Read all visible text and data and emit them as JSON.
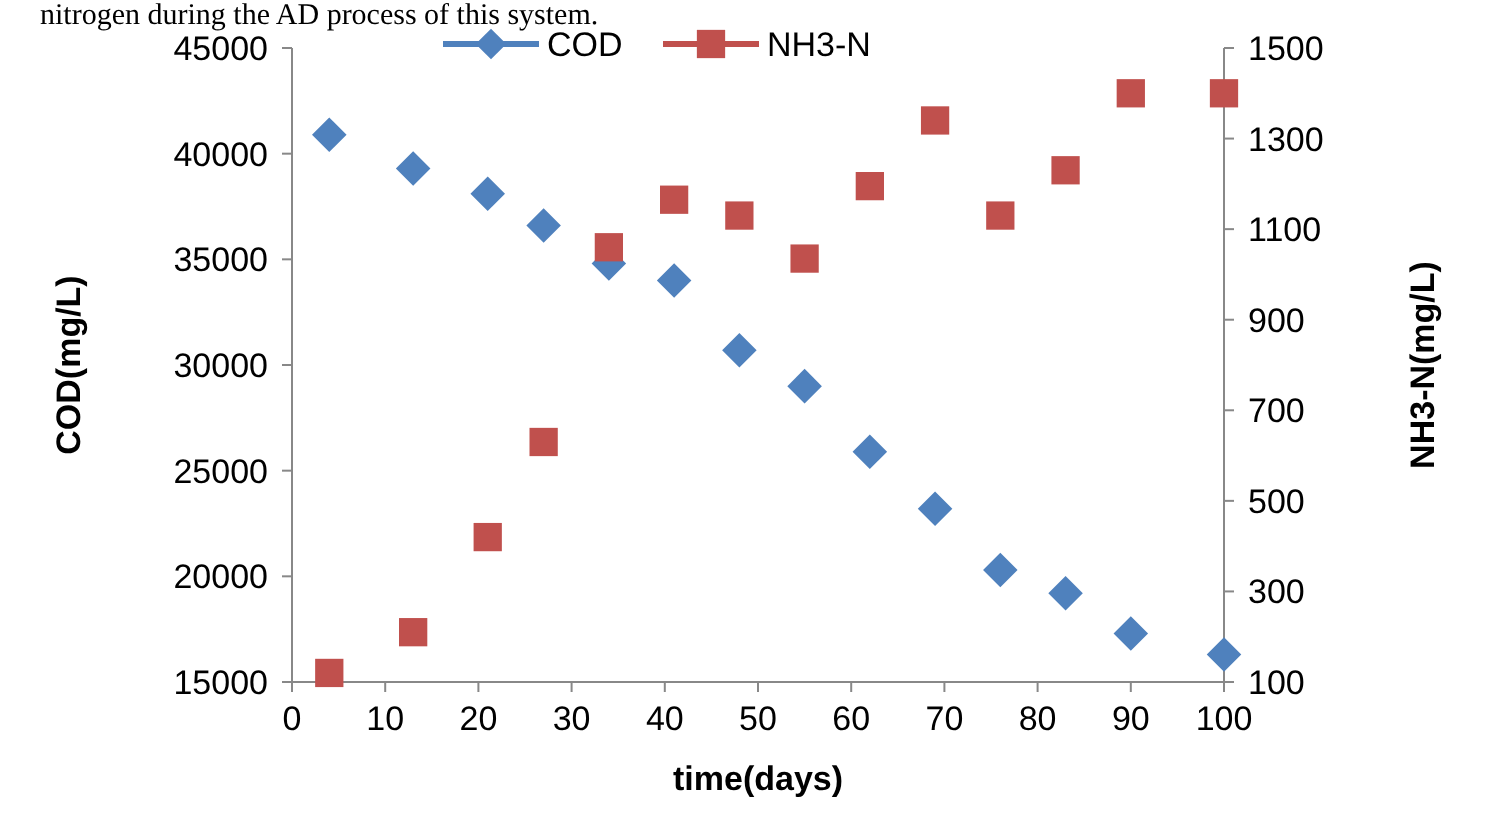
{
  "chart_data": {
    "type": "scatter",
    "xlabel": "time(days)",
    "ylabel": "COD(mg/L)",
    "y2label": "NH3-N(mg/L)",
    "annotations": [
      "nitrogen during the AD process of this system."
    ],
    "x": [
      4,
      13,
      21,
      27,
      34,
      41,
      48,
      55,
      62,
      69,
      76,
      83,
      90,
      100
    ],
    "series": [
      {
        "name": "COD",
        "color": "#4f81bd",
        "marker": "diamond",
        "values": [
          40900,
          39300,
          38100,
          36600,
          34800,
          34000,
          30700,
          29000,
          25900,
          23200,
          20300,
          19200,
          17300,
          16300
        ]
      },
      {
        "name": "NH3-N",
        "color": "#c0504d",
        "marker": "square",
        "axis": "y2",
        "values": [
          120,
          210,
          420,
          630,
          1060,
          1165,
          1130,
          1035,
          1195,
          1340,
          1130,
          1230,
          1400,
          1400
        ]
      }
    ],
    "xlim": [
      0,
      100
    ],
    "xticks": [
      0,
      10,
      20,
      30,
      40,
      50,
      60,
      70,
      80,
      90,
      100
    ],
    "ylim": [
      15000,
      45000
    ],
    "yticks": [
      15000,
      20000,
      25000,
      30000,
      35000,
      40000,
      45000
    ],
    "y2lim": [
      100,
      1500
    ],
    "y2ticks": [
      100,
      300,
      500,
      700,
      900,
      1100,
      1300,
      1500
    ],
    "legend": "top",
    "grid": false
  }
}
